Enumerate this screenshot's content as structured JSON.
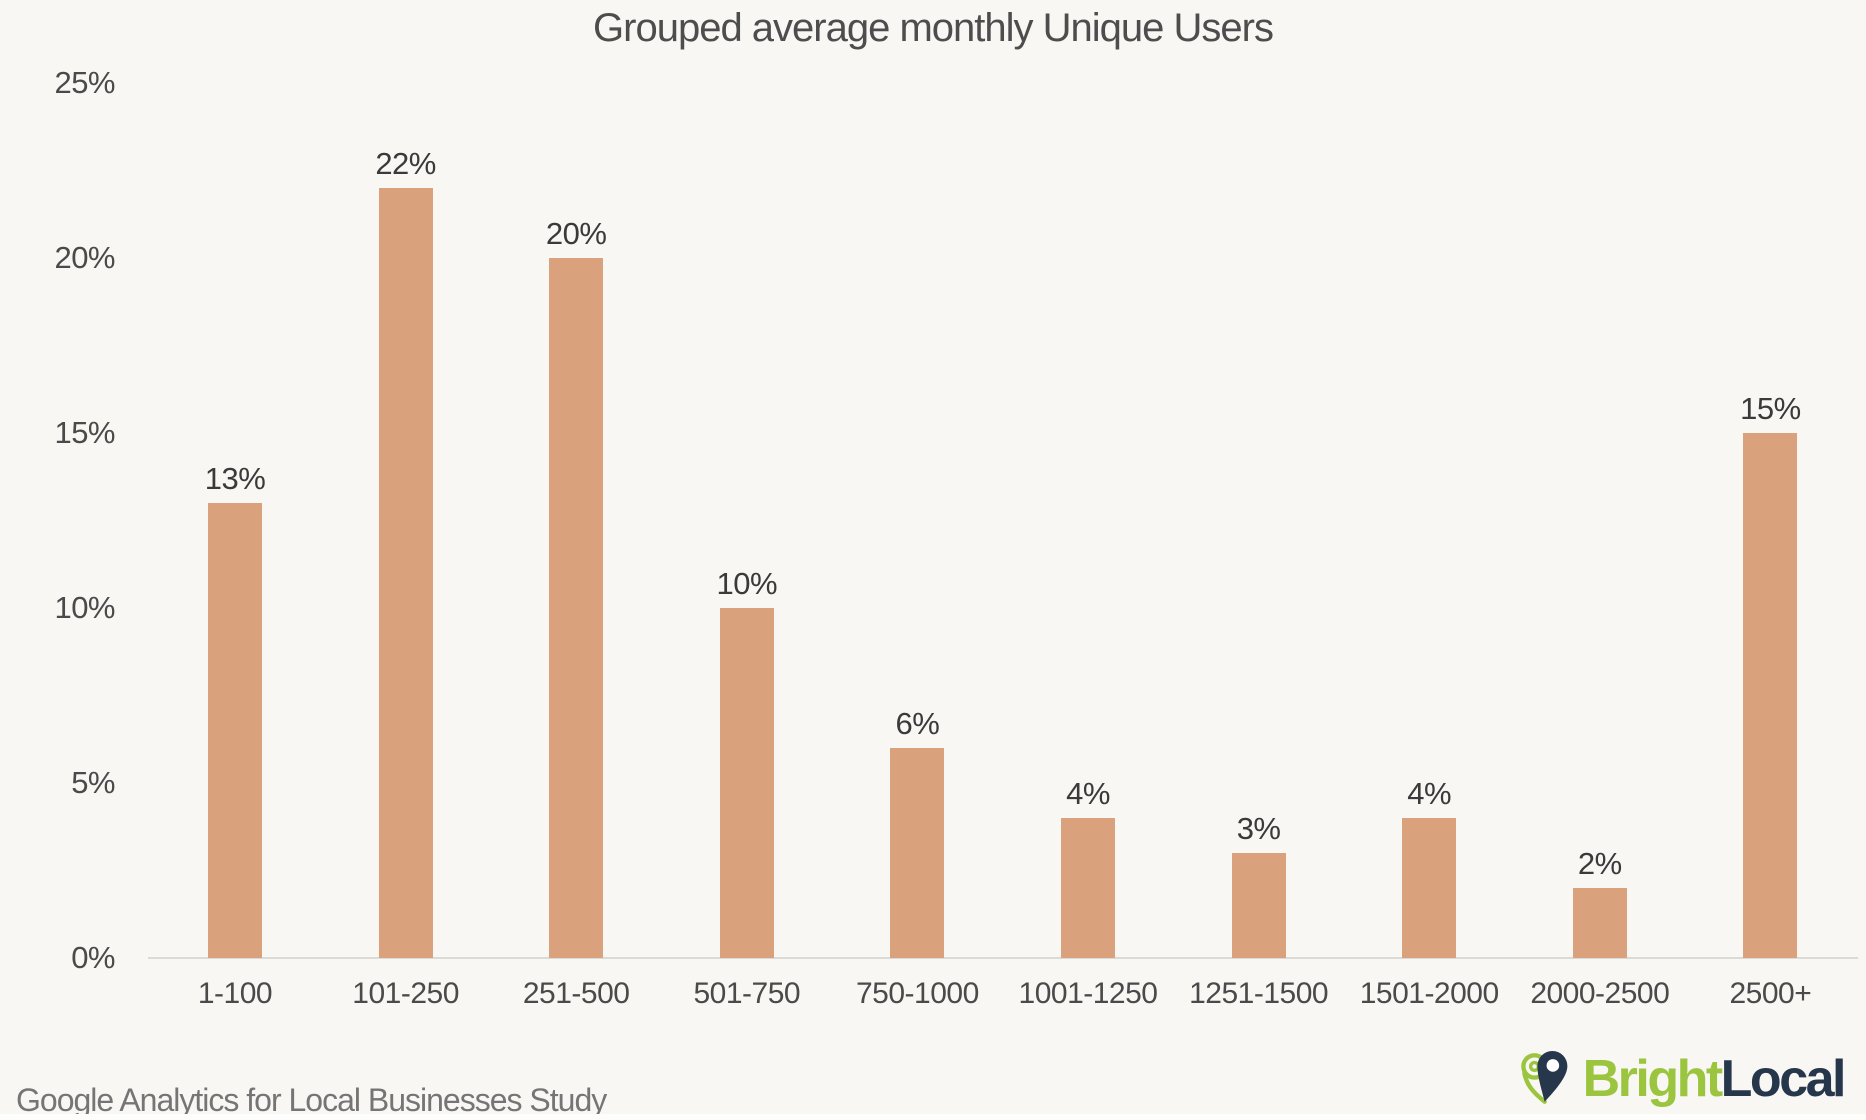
{
  "chart_data": {
    "type": "bar",
    "title": "Grouped average monthly Unique Users",
    "categories": [
      "1-100",
      "101-250",
      "251-500",
      "501-750",
      "750-1000",
      "1001-1250",
      "1251-1500",
      "1501-2000",
      "2000-2500",
      "2500+"
    ],
    "values": [
      13,
      22,
      20,
      10,
      6,
      4,
      3,
      4,
      2,
      15
    ],
    "value_labels": [
      "13%",
      "22%",
      "20%",
      "10%",
      "6%",
      "4%",
      "3%",
      "4%",
      "2%",
      "15%"
    ],
    "y_ticks": [
      25,
      20,
      15,
      10,
      5,
      0
    ],
    "y_tick_labels": [
      "25%",
      "20%",
      "15%",
      "10%",
      "5%",
      "0%"
    ],
    "ylim": [
      0,
      25
    ],
    "xlabel": "",
    "ylabel": "",
    "grid": false,
    "legend": "none",
    "bar_color": "#d9a27d"
  },
  "footer": {
    "source_text": "Google Analytics for Local Businesses Study",
    "logo": {
      "bright": "Bright",
      "local": "Local"
    }
  },
  "colors": {
    "background": "#f8f7f4",
    "bar": "#d9a27d",
    "title_text": "#4d4d4d",
    "axis_text": "#4a4a4a",
    "value_label_text": "#3a3a3a",
    "axis_line": "#dbdad6",
    "footer_text": "#757575",
    "brand_green": "#9cc53f",
    "brand_navy": "#26374b"
  }
}
